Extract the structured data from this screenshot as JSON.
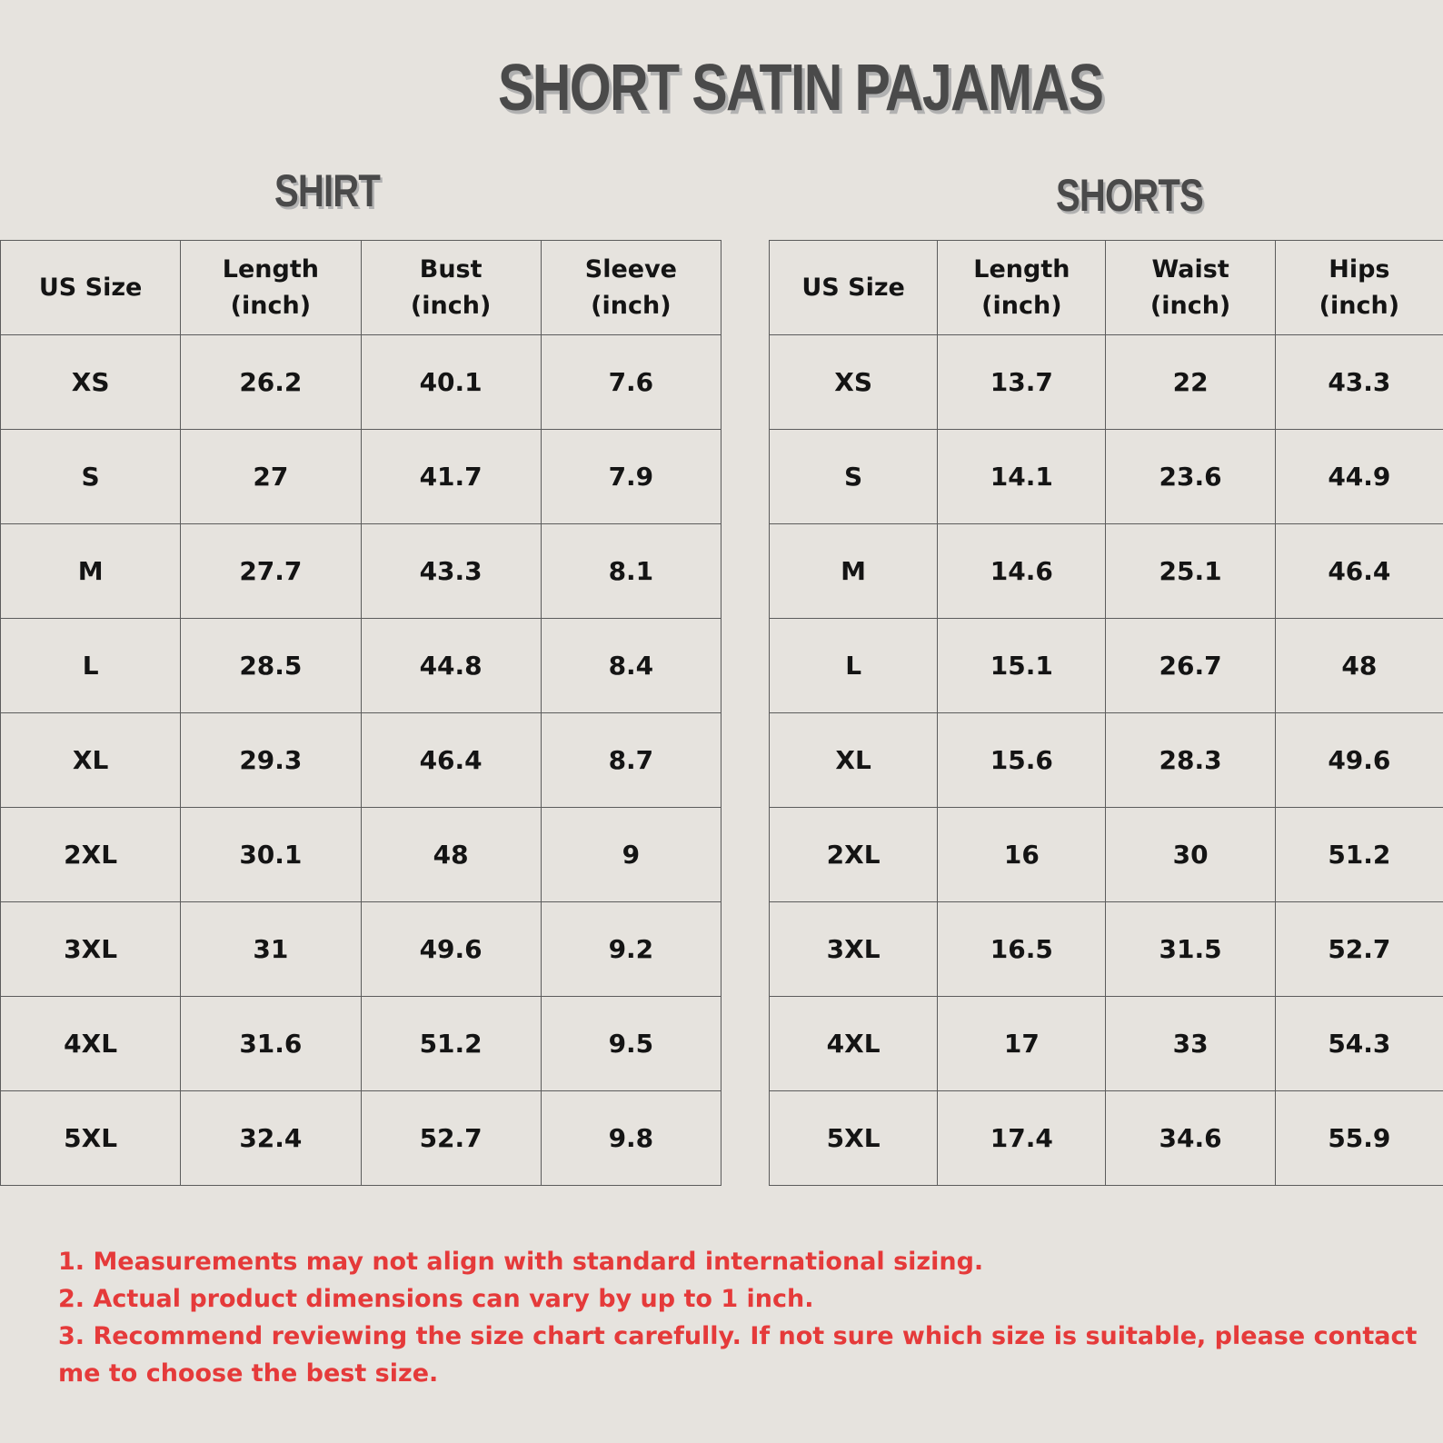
{
  "title": "SHORT SATIN PAJAMAS",
  "shirt": {
    "title": "SHIRT",
    "headers": [
      "US Size",
      "Length\n(inch)",
      "Bust\n(inch)",
      "Sleeve\n(inch)"
    ],
    "rows": [
      [
        "XS",
        "26.2",
        "40.1",
        "7.6"
      ],
      [
        "S",
        "27",
        "41.7",
        "7.9"
      ],
      [
        "M",
        "27.7",
        "43.3",
        "8.1"
      ],
      [
        "L",
        "28.5",
        "44.8",
        "8.4"
      ],
      [
        "XL",
        "29.3",
        "46.4",
        "8.7"
      ],
      [
        "2XL",
        "30.1",
        "48",
        "9"
      ],
      [
        "3XL",
        "31",
        "49.6",
        "9.2"
      ],
      [
        "4XL",
        "31.6",
        "51.2",
        "9.5"
      ],
      [
        "5XL",
        "32.4",
        "52.7",
        "9.8"
      ]
    ]
  },
  "shorts": {
    "title": "SHORTS",
    "headers": [
      "US Size",
      "Length\n(inch)",
      "Waist (inch)",
      "Hips\n(inch)"
    ],
    "rows": [
      [
        "XS",
        "13.7",
        "22",
        "43.3"
      ],
      [
        "S",
        "14.1",
        "23.6",
        "44.9"
      ],
      [
        "M",
        "14.6",
        "25.1",
        "46.4"
      ],
      [
        "L",
        "15.1",
        "26.7",
        "48"
      ],
      [
        "XL",
        "15.6",
        "28.3",
        "49.6"
      ],
      [
        "2XL",
        "16",
        "30",
        "51.2"
      ],
      [
        "3XL",
        "16.5",
        "31.5",
        "52.7"
      ],
      [
        "4XL",
        "17",
        "33",
        "54.3"
      ],
      [
        "5XL",
        "17.4",
        "34.6",
        "55.9"
      ]
    ]
  },
  "notes": [
    "1. Measurements may not align with standard international sizing.",
    "2. Actual product dimensions can vary by up to 1 inch.",
    "3. Recommend reviewing the size chart carefully. If not sure which size is suitable, please contact me to choose the best size."
  ],
  "colors": {
    "background": "#e6e3de",
    "title": "#4a4a4a",
    "title_shadow": "#b1b1b1",
    "table_text": "#141414",
    "table_border": "#5c5c5c",
    "notes": "#e53a3a"
  }
}
